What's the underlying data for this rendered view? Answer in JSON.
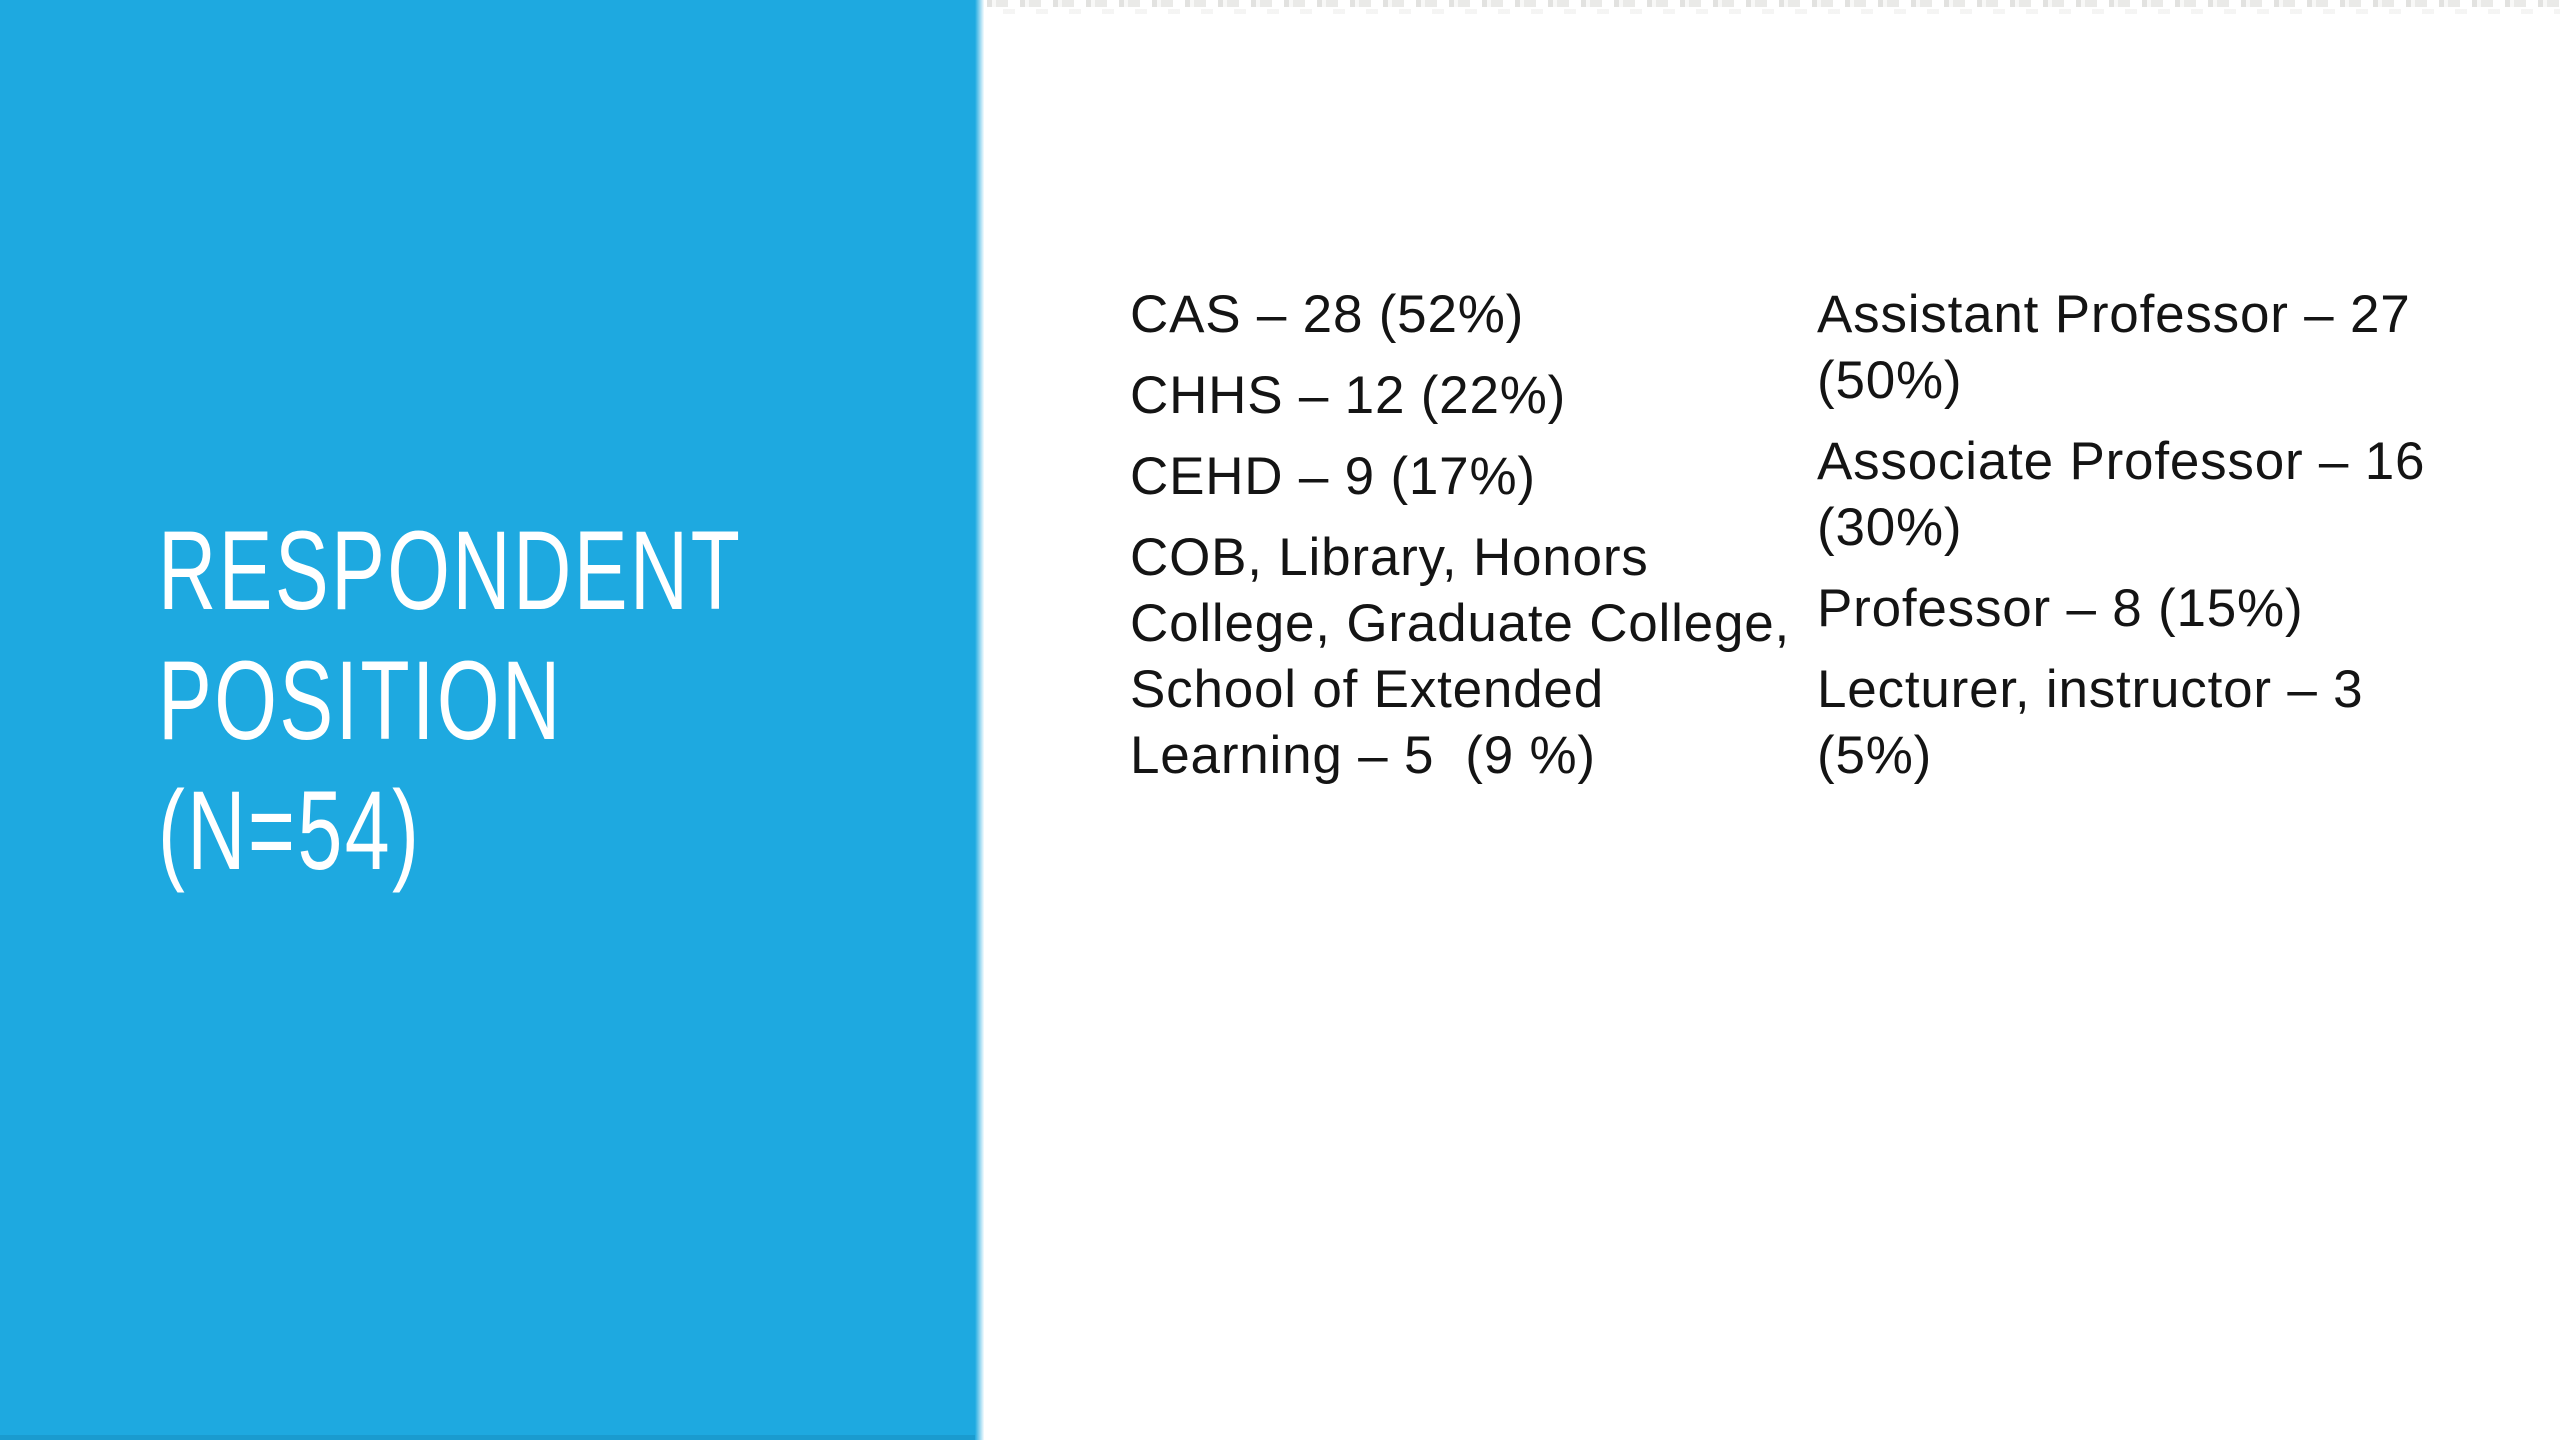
{
  "slide": {
    "title": {
      "lines": [
        "RESPONDENT",
        "POSITION",
        "(N=54)"
      ]
    },
    "columns": [
      {
        "name": "college-distribution",
        "items": [
          {
            "lines": [
              "CAS – 28 (52%)"
            ]
          },
          {
            "lines": [
              "CHHS – 12 (22%)"
            ]
          },
          {
            "lines": [
              "CEHD – 9 (17%)"
            ]
          },
          {
            "lines": [
              "COB, Library, Honors",
              "College, Graduate College,",
              "School of Extended",
              "Learning – 5  (9 %)"
            ]
          }
        ]
      },
      {
        "name": "position-distribution",
        "items": [
          {
            "lines": [
              "Assistant Professor – 27",
              "(50%)"
            ]
          },
          {
            "lines": [
              "Associate Professor – 16",
              "(30%)"
            ]
          },
          {
            "lines": [
              "Professor – 8 (15%)"
            ]
          },
          {
            "lines": [
              "Lecturer, instructor – 3",
              "(5%)"
            ]
          }
        ]
      }
    ],
    "colors": {
      "panel_blue": "#1ea9e0",
      "title_text": "#ffffff",
      "body_text": "#141414",
      "background": "#ffffff"
    }
  }
}
